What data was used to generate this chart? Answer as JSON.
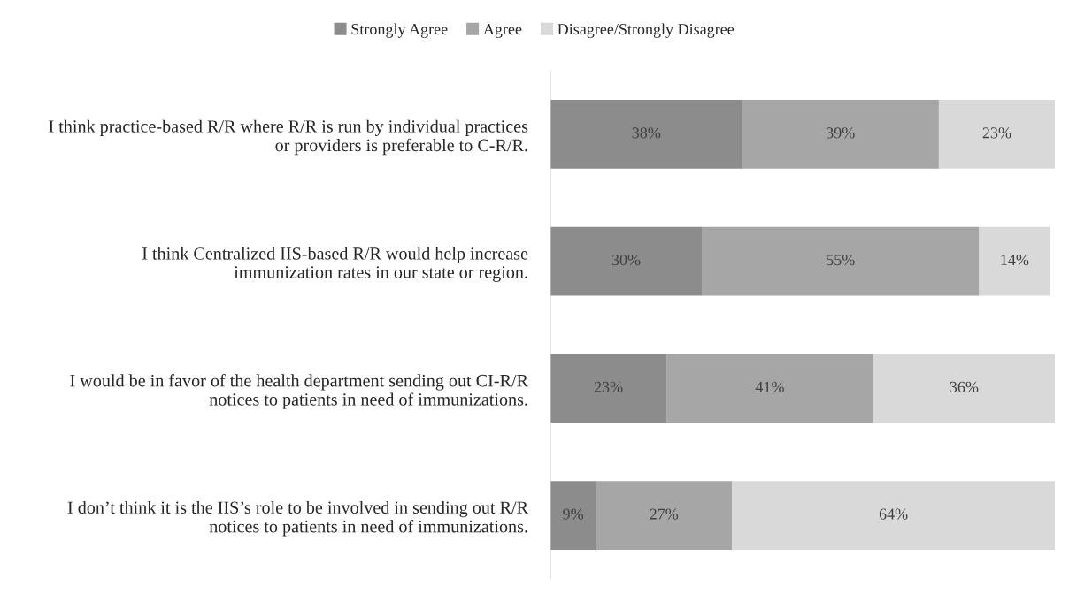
{
  "chart_data": {
    "type": "bar",
    "orientation": "horizontal",
    "stacked": true,
    "legend": "top",
    "grid": false,
    "categories": [
      "I think practice-based R/R where R/R is run by individual practices\nor providers is preferable to C-R/R.",
      "I think Centralized IIS-based R/R would help increase\nimmunization rates in our state or region.",
      "I would be in favor of the health department sending out CI-R/R\nnotices to patients in need of immunizations.",
      "I don’t think it is the IIS’s role to be involved in sending out R/R\nnotices to patients in need of immunizations."
    ],
    "series": [
      {
        "name": "Strongly Agree",
        "color": "#8c8c8c",
        "values": [
          38,
          30,
          23,
          9
        ],
        "value_labels": [
          "38%",
          "30%",
          "23%",
          "9%"
        ]
      },
      {
        "name": "Agree",
        "color": "#a6a6a6",
        "values": [
          39,
          55,
          41,
          27
        ],
        "value_labels": [
          "39%",
          "55%",
          "41%",
          "27%"
        ]
      },
      {
        "name": "Disagree/Strongly Disagree",
        "color": "#d9d9d9",
        "values": [
          23,
          14,
          36,
          64
        ],
        "value_labels": [
          "23%",
          "14%",
          "36%",
          "64%"
        ]
      }
    ]
  }
}
